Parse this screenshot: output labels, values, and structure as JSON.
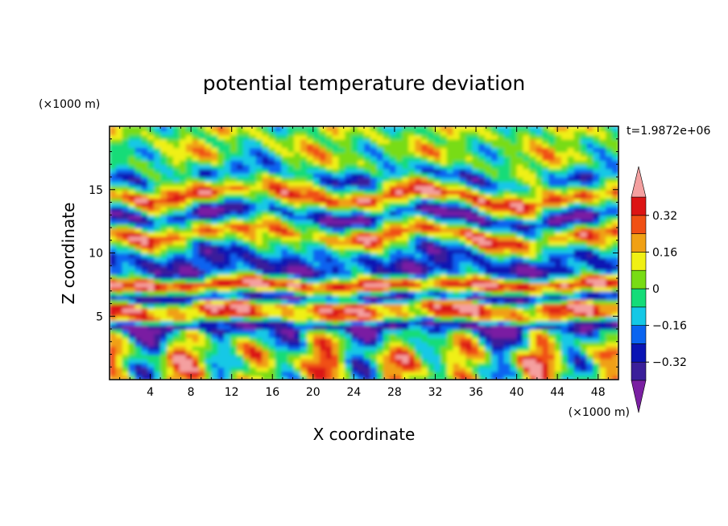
{
  "chart_data": {
    "type": "heatmap",
    "title": "potential temperature deviation",
    "xlabel": "X coordinate",
    "ylabel": "Z coordinate",
    "x_unit": "(×1000 m)",
    "y_unit": "(×1000 m)",
    "time_label": "t=1.9872e+06",
    "xlim": [
      0,
      50
    ],
    "ylim": [
      0,
      20
    ],
    "x_ticks": [
      4,
      8,
      12,
      16,
      20,
      24,
      28,
      32,
      36,
      40,
      44,
      48
    ],
    "y_ticks": [
      5,
      10,
      15
    ],
    "x_tick_labels": [
      "4",
      "8",
      "12",
      "16",
      "20",
      "24",
      "28",
      "32",
      "36",
      "40",
      "44",
      "48"
    ],
    "y_tick_labels": [
      "5",
      "10",
      "15"
    ],
    "colorbar": {
      "levels": [
        -0.4,
        -0.32,
        -0.24,
        -0.16,
        -0.08,
        0,
        0.08,
        0.16,
        0.24,
        0.32,
        0.4
      ],
      "tick_values": [
        -0.32,
        -0.16,
        0,
        0.16,
        0.32
      ],
      "tick_labels": [
        "−0.32",
        "−0.16",
        "0",
        "0.16",
        "0.32"
      ],
      "colors": [
        "#7a1fa2",
        "#3a1f9a",
        "#0a14b4",
        "#0a64f0",
        "#14c8e6",
        "#14dc78",
        "#78dc14",
        "#f0f014",
        "#f0a014",
        "#f05014",
        "#dc1414",
        "#f4a0a0"
      ],
      "extend": "both"
    },
    "bands": [
      {
        "z": 0.5,
        "value": 0.05
      },
      {
        "z": 2,
        "value": 0.1
      },
      {
        "z": 3.5,
        "value": -0.1
      },
      {
        "z": 4.3,
        "value": -0.38
      },
      {
        "z": 5.0,
        "value": 0.22
      },
      {
        "z": 5.8,
        "value": 0.3
      },
      {
        "z": 6.5,
        "value": -0.35
      },
      {
        "z": 7.5,
        "value": 0.42
      },
      {
        "z": 8.5,
        "value": -0.3
      },
      {
        "z": 10,
        "value": -0.2
      },
      {
        "z": 11.5,
        "value": 0.3
      },
      {
        "z": 13,
        "value": -0.38
      },
      {
        "z": 14.5,
        "value": 0.35
      },
      {
        "z": 16,
        "value": -0.2
      },
      {
        "z": 17.5,
        "value": 0.05
      },
      {
        "z": 19,
        "value": 0.03
      }
    ]
  }
}
